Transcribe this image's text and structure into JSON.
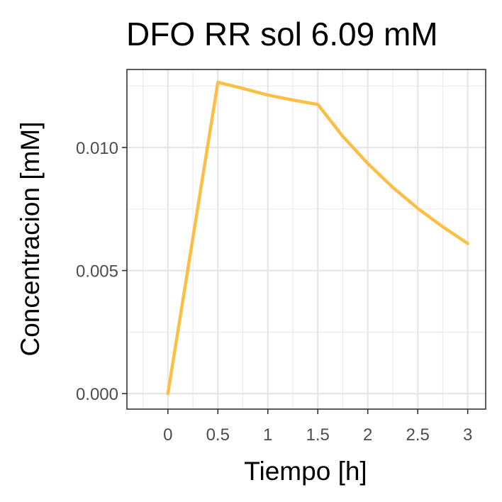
{
  "chart_data": {
    "type": "line",
    "title": "DFO RR sol 6.09 mM",
    "xlabel": "Tiempo [h]",
    "ylabel": "Concentracion [mM]",
    "xlim": [
      -0.41,
      3.18
    ],
    "ylim": [
      -0.00063,
      0.01317
    ],
    "x_ticks": [
      0,
      0.5,
      1,
      1.5,
      2,
      2.5,
      3
    ],
    "x_tick_labels": [
      "0",
      "0.5",
      "1",
      "1.5",
      "2",
      "2.5",
      "3"
    ],
    "x_minor_ticks": [
      -0.25,
      0.25,
      0.75,
      1.25,
      1.75,
      2.25,
      2.75
    ],
    "y_ticks": [
      0,
      0.005,
      0.01
    ],
    "y_tick_labels": [
      "0.000",
      "0.005",
      "0.010"
    ],
    "y_minor_ticks": [
      0.0025,
      0.0075,
      0.0125
    ],
    "grid": true,
    "legend": "none",
    "series": [
      {
        "color": "#fbbf45",
        "x": [
          0,
          0.5,
          0.75,
          1.0,
          1.25,
          1.5,
          1.75,
          2.0,
          2.25,
          2.5,
          2.75,
          3.0
        ],
        "y": [
          0.0,
          0.01265,
          0.0124,
          0.01213,
          0.01193,
          0.01175,
          0.01045,
          0.00935,
          0.00838,
          0.00753,
          0.00678,
          0.0061
        ]
      }
    ]
  }
}
